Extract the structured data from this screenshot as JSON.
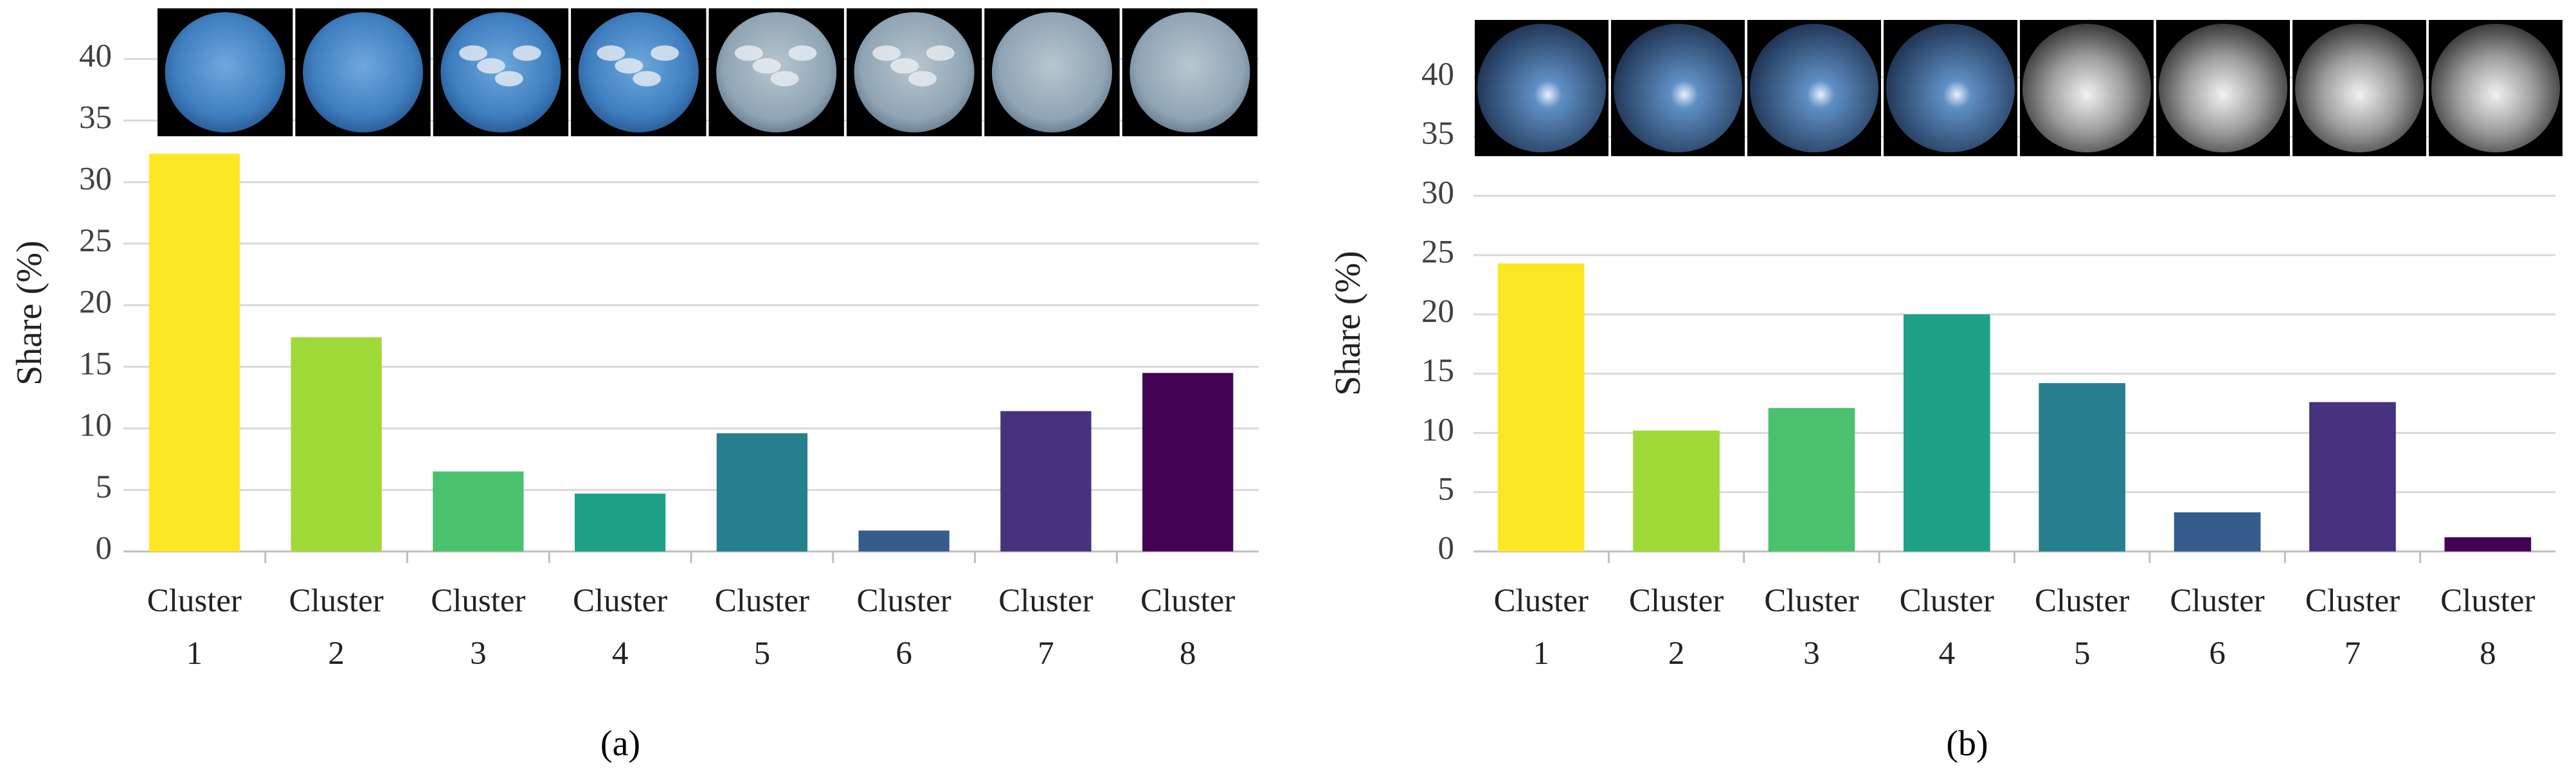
{
  "chart_data": [
    {
      "type": "bar",
      "caption": "(a)",
      "y_label": "Share (%)",
      "categories": [
        "Cluster 1",
        "Cluster 2",
        "Cluster 3",
        "Cluster 4",
        "Cluster 5",
        "Cluster 6",
        "Cluster 7",
        "Cluster 8"
      ],
      "values": [
        32.3,
        17.4,
        6.5,
        4.7,
        9.6,
        1.7,
        11.4,
        14.5
      ],
      "colors": [
        "#fde725",
        "#a0da39",
        "#4ac16d",
        "#1fa187",
        "#277f8e",
        "#365c8d",
        "#46327e",
        "#440154"
      ],
      "ylim": [
        0,
        45
      ],
      "yticks": [
        0,
        5,
        10,
        15,
        20,
        25,
        30,
        35,
        40
      ],
      "grid": true
    },
    {
      "type": "bar",
      "caption": "(b)",
      "y_label": "Share (%)",
      "categories": [
        "Cluster 1",
        "Cluster 2",
        "Cluster 3",
        "Cluster 4",
        "Cluster 5",
        "Cluster 6",
        "Cluster 7",
        "Cluster 8"
      ],
      "values": [
        24.3,
        10.2,
        12.1,
        20.0,
        14.2,
        3.3,
        12.6,
        1.2
      ],
      "colors": [
        "#fde725",
        "#a0da39",
        "#4ac16d",
        "#1fa187",
        "#277f8e",
        "#365c8d",
        "#46327e",
        "#440154"
      ],
      "ylim": [
        0,
        45
      ],
      "yticks": [
        0,
        5,
        10,
        15,
        20,
        25,
        30,
        35,
        40
      ],
      "grid": true
    }
  ]
}
